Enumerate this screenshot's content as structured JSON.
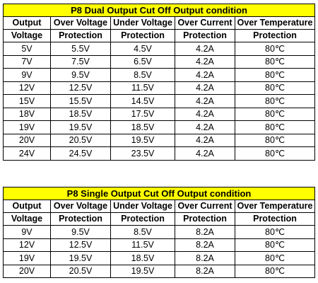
{
  "headers": {
    "row1": [
      "Output",
      "Over Voltage",
      "Under Voltage",
      "Over Current",
      "Over Temperature"
    ],
    "row2": [
      "Voltage",
      "Protection",
      "Protection",
      "Protection",
      "Protection"
    ]
  },
  "tables": [
    {
      "title": "P8 Dual Output Cut Off Output condition",
      "rows": [
        [
          "5V",
          "5.5V",
          "4.5V",
          "4.2A",
          "80℃"
        ],
        [
          "7V",
          "7.5V",
          "6.5V",
          "4.2A",
          "80℃"
        ],
        [
          "9V",
          "9.5V",
          "8.5V",
          "4.2A",
          "80℃"
        ],
        [
          "12V",
          "12.5V",
          "11.5V",
          "4.2A",
          "80℃"
        ],
        [
          "15V",
          "15.5V",
          "14.5V",
          "4.2A",
          "80℃"
        ],
        [
          "18V",
          "18.5V",
          "17.5V",
          "4.2A",
          "80℃"
        ],
        [
          "19V",
          "19.5V",
          "18.5V",
          "4.2A",
          "80℃"
        ],
        [
          "20V",
          "20.5V",
          "19.5V",
          "4.2A",
          "80℃"
        ],
        [
          "24V",
          "24.5V",
          "23.5V",
          "4.2A",
          "80℃"
        ]
      ]
    },
    {
      "title": "P8 Single Output Cut Off Output condition",
      "rows": [
        [
          "9V",
          "9.5V",
          "8.5V",
          "8.2A",
          "80℃"
        ],
        [
          "12V",
          "12.5V",
          "11.5V",
          "8.2A",
          "80℃"
        ],
        [
          "19V",
          "19.5V",
          "18.5V",
          "8.2A",
          "80℃"
        ],
        [
          "20V",
          "20.5V",
          "19.5V",
          "8.2A",
          "80℃"
        ]
      ]
    }
  ]
}
